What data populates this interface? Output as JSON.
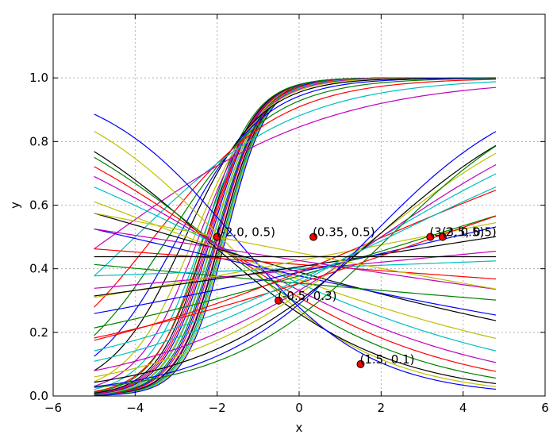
{
  "chart_data": {
    "type": "line",
    "title": "",
    "xlabel": "x",
    "ylabel": "y",
    "xlim": [
      -6,
      6
    ],
    "ylim": [
      0.0,
      1.2
    ],
    "grid": true,
    "x_ticks": [
      -6,
      -4,
      -2,
      0,
      2,
      4,
      6
    ],
    "y_ticks": [
      0.0,
      0.2,
      0.4,
      0.6,
      0.8,
      1.0
    ],
    "x_tick_labels": [
      "−6",
      "−4",
      "−2",
      "0",
      "2",
      "4",
      "6"
    ],
    "y_tick_labels": [
      "0.0",
      "0.2",
      "0.4",
      "0.6",
      "0.8",
      "1.0"
    ],
    "x_range": [
      -5.0,
      4.8
    ],
    "color_cycle": [
      "#0000ff",
      "#008000",
      "#ff0000",
      "#00bfbf",
      "#bf00bf",
      "#bfbf00",
      "#000000"
    ],
    "curve_form": "y = 1 / (1 + exp(-(a + b*x)))",
    "series": [
      {
        "a": 3.7,
        "b": 1.85
      },
      {
        "a": 3.72,
        "b": 1.83
      },
      {
        "a": 3.68,
        "b": 1.87
      },
      {
        "a": 3.75,
        "b": 1.8
      },
      {
        "a": 3.65,
        "b": 1.9
      },
      {
        "a": 3.74,
        "b": 1.78
      },
      {
        "a": 3.66,
        "b": 1.92
      },
      {
        "a": 3.78,
        "b": 1.76
      },
      {
        "a": 3.62,
        "b": 1.94
      },
      {
        "a": 3.8,
        "b": 1.74
      },
      {
        "a": 3.6,
        "b": 1.96
      },
      {
        "a": 3.82,
        "b": 1.72
      },
      {
        "a": 3.58,
        "b": 1.98
      },
      {
        "a": 3.84,
        "b": 1.7
      },
      {
        "a": 3.56,
        "b": 2.0
      },
      {
        "a": 3.86,
        "b": 1.66
      },
      {
        "a": 3.5,
        "b": 1.55
      },
      {
        "a": 3.4,
        "b": 1.45
      },
      {
        "a": 3.3,
        "b": 1.35
      },
      {
        "a": 3.2,
        "b": 1.25
      },
      {
        "a": 3.05,
        "b": 1.1
      },
      {
        "a": 2.8,
        "b": 0.95
      },
      {
        "a": 2.55,
        "b": 0.8
      },
      {
        "a": 2.3,
        "b": 0.65
      },
      {
        "a": 2.0,
        "b": 0.5
      },
      {
        "a": 1.7,
        "b": 0.37
      },
      {
        "a": -1.0,
        "b": -0.52
      },
      {
        "a": -1.05,
        "b": -0.45
      },
      {
        "a": -0.95,
        "b": -0.6
      },
      {
        "a": -0.9,
        "b": -0.4
      },
      {
        "a": -0.8,
        "b": -0.35
      },
      {
        "a": -0.6,
        "b": -0.25
      },
      {
        "a": -0.7,
        "b": -0.3
      },
      {
        "a": -0.55,
        "b": -0.2
      },
      {
        "a": -0.45,
        "b": -0.15
      },
      {
        "a": -0.5,
        "b": -0.12
      },
      {
        "a": -0.6,
        "b": -0.05
      },
      {
        "a": -0.35,
        "b": -0.04
      },
      {
        "a": -0.4,
        "b": 0.02
      },
      {
        "a": -0.42,
        "b": 0.05
      },
      {
        "a": -0.3,
        "b": 0.1
      },
      {
        "a": -0.38,
        "b": 0.08
      },
      {
        "a": -0.45,
        "b": 0.12
      },
      {
        "a": -0.5,
        "b": 0.16
      },
      {
        "a": -0.45,
        "b": 0.22
      },
      {
        "a": -0.6,
        "b": 0.3
      },
      {
        "a": -0.7,
        "b": 0.35
      },
      {
        "a": -0.75,
        "b": 0.4
      },
      {
        "a": -0.85,
        "b": 0.45
      },
      {
        "a": -0.9,
        "b": 0.52
      },
      {
        "a": -1.1,
        "b": 0.5
      },
      {
        "a": -0.6,
        "b": 0.18
      },
      {
        "a": -0.55,
        "b": 0.25
      },
      {
        "a": -0.3,
        "b": -0.08
      },
      {
        "a": -0.2,
        "b": -0.1
      },
      {
        "a": -0.25,
        "b": 0.0
      }
    ],
    "points": [
      {
        "x": -2.0,
        "y": 0.5,
        "label": "(-2.0, 0.5)"
      },
      {
        "x": 0.35,
        "y": 0.5,
        "label": "(0.35, 0.5)"
      },
      {
        "x": -0.5,
        "y": 0.3,
        "label": "(-0.5, 0.3)"
      },
      {
        "x": 1.5,
        "y": 0.1,
        "label": "(1.5, 0.1)"
      },
      {
        "x": 3.2,
        "y": 0.5,
        "label": "(3.2, 0.5)"
      },
      {
        "x": 3.5,
        "y": 0.5,
        "label": "(3.5, 0.5)"
      }
    ],
    "point_color": "#ff0000"
  }
}
